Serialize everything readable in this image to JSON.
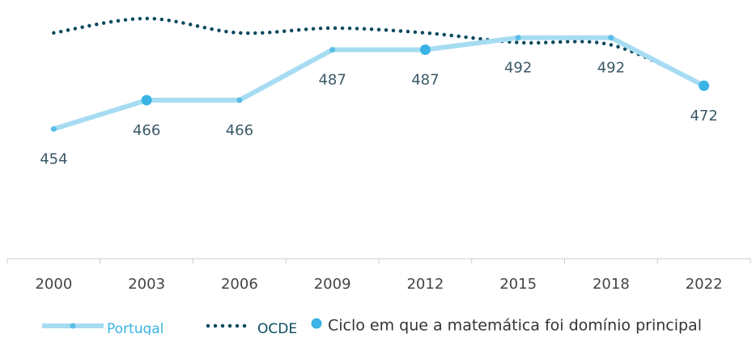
{
  "chart_data": {
    "type": "line",
    "categories": [
      "2000",
      "2003",
      "2006",
      "2009",
      "2012",
      "2015",
      "2018",
      "2022"
    ],
    "series": [
      {
        "name": "Portugal",
        "color": "#a6dcf2",
        "values": [
          454,
          466,
          466,
          487,
          487,
          492,
          492,
          472
        ]
      },
      {
        "name": "OCDE",
        "color": "#0d4a5e",
        "values": [
          494,
          500,
          494,
          496,
          494,
          490,
          489,
          472
        ]
      }
    ],
    "highlight": {
      "name": "Ciclo em que a matemática foi domínio principal",
      "color": "#3bb4e5",
      "years": [
        false,
        true,
        false,
        false,
        true,
        false,
        false,
        true
      ]
    },
    "ylim": [
      400,
      505
    ]
  }
}
